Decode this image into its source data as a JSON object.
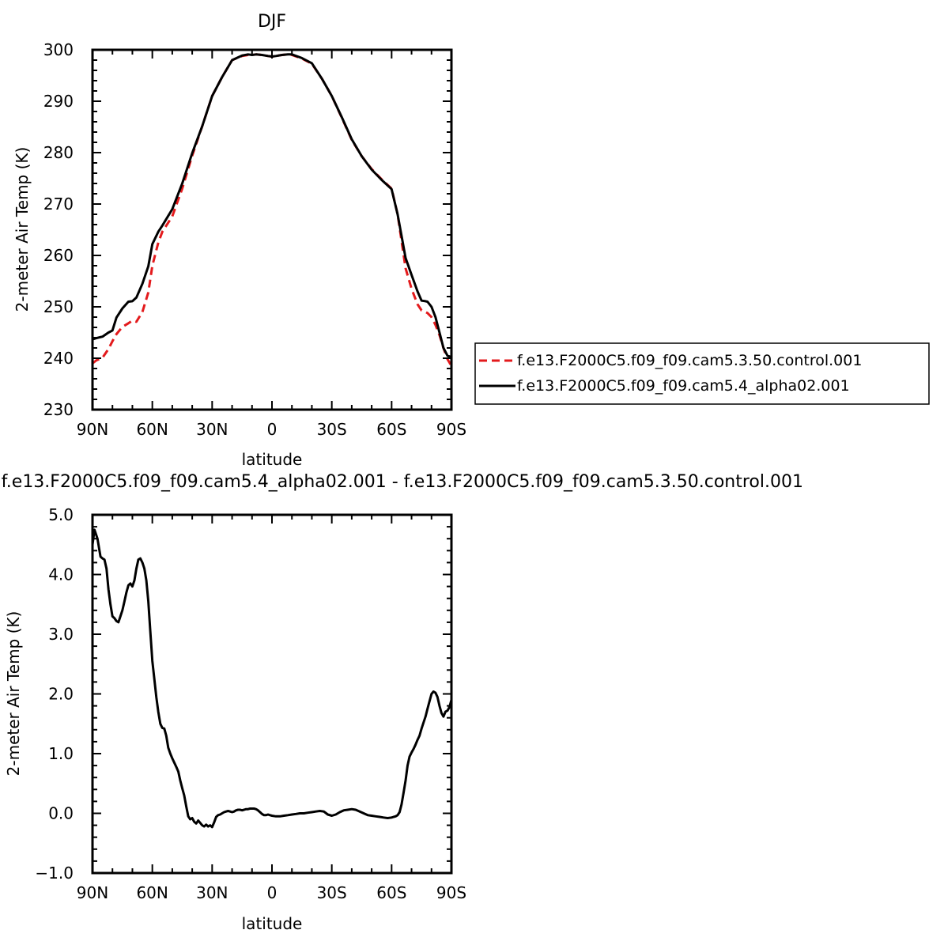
{
  "chart_data": [
    {
      "type": "line",
      "title": "DJF",
      "xlabel": "latitude",
      "ylabel": "2-meter Air Temp (K)",
      "xlim": [
        -90,
        90
      ],
      "ylim": [
        230,
        300
      ],
      "x_ticks": [
        -90,
        -60,
        -30,
        0,
        30,
        60,
        90
      ],
      "x_tick_labels": [
        "90N",
        "60N",
        "30N",
        "0",
        "30S",
        "60S",
        "90S"
      ],
      "y_ticks": [
        230,
        240,
        250,
        260,
        270,
        280,
        290,
        300
      ],
      "y_tick_labels": [
        "230",
        "240",
        "250",
        "260",
        "270",
        "280",
        "290",
        "300"
      ],
      "legend_position": "right-outside",
      "series": [
        {
          "name": "f.e13.F2000C5.f09_f09.cam5.3.50.control.001",
          "color": "#e31a1c",
          "dash": "dashed",
          "x": [
            -90,
            -88,
            -85,
            -82,
            -80,
            -78,
            -75,
            -72,
            -70,
            -68,
            -65,
            -62,
            -60,
            -57,
            -55,
            -50,
            -45,
            -40,
            -35,
            -30,
            -25,
            -20,
            -15,
            -12,
            -10,
            -8,
            -5,
            -2,
            0,
            2,
            5,
            8,
            10,
            15,
            20,
            25,
            30,
            35,
            40,
            45,
            50,
            55,
            60,
            63,
            65,
            67,
            70,
            73,
            75,
            77,
            78,
            80,
            82,
            84,
            86,
            88,
            90
          ],
          "y": [
            239.0,
            239.6,
            240.1,
            241.8,
            243.3,
            244.7,
            246.1,
            246.8,
            247.3,
            247.1,
            249.0,
            252.8,
            258.0,
            262.5,
            264.6,
            267.6,
            273.0,
            279.4,
            285.1,
            291.0,
            294.7,
            298.0,
            298.8,
            299.0,
            299.0,
            299.1,
            299.0,
            298.8,
            298.7,
            298.8,
            299.0,
            299.1,
            299.0,
            298.3,
            297.3,
            294.4,
            291.0,
            286.8,
            282.5,
            279.3,
            276.8,
            274.8,
            273.0,
            268.0,
            262.8,
            257.5,
            253.5,
            250.5,
            249.3,
            249.0,
            248.8,
            248.0,
            246.5,
            244.5,
            242.0,
            239.8,
            238.5
          ]
        },
        {
          "name": "f.e13.F2000C5.f09_f09.cam5.4_alpha02.001",
          "color": "#000000",
          "dash": "solid",
          "x": [
            -90,
            -88,
            -85,
            -82,
            -80,
            -78,
            -75,
            -72,
            -70,
            -68,
            -65,
            -62,
            -60,
            -57,
            -55,
            -50,
            -45,
            -40,
            -35,
            -30,
            -25,
            -20,
            -15,
            -12,
            -10,
            -8,
            -5,
            -2,
            0,
            2,
            5,
            8,
            10,
            15,
            20,
            25,
            30,
            35,
            40,
            45,
            50,
            55,
            60,
            63,
            65,
            67,
            70,
            73,
            75,
            77,
            78,
            80,
            82,
            84,
            86,
            88,
            90
          ],
          "y": [
            243.7,
            243.9,
            244.2,
            245.0,
            245.4,
            247.9,
            249.7,
            251.0,
            251.1,
            251.8,
            254.5,
            257.9,
            262.2,
            264.6,
            265.8,
            269.0,
            274.0,
            279.9,
            285.1,
            291.0,
            294.7,
            298.0,
            298.9,
            299.1,
            299.0,
            299.1,
            299.0,
            298.8,
            298.7,
            298.8,
            299.0,
            299.1,
            299.1,
            298.4,
            297.4,
            294.4,
            291.0,
            286.9,
            282.6,
            279.3,
            276.7,
            274.7,
            272.9,
            268.0,
            263.8,
            259.5,
            256.2,
            253.0,
            251.2,
            251.1,
            251.0,
            250.0,
            248.0,
            245.0,
            242.0,
            240.5,
            240.2
          ]
        }
      ]
    },
    {
      "type": "line",
      "title": "f.e13.F2000C5.f09_f09.cam5.4_alpha02.001 - f.e13.F2000C5.f09_f09.cam5.3.50.control.001",
      "xlabel": "latitude",
      "ylabel": "2-meter Air Temp (K)",
      "xlim": [
        -90,
        90
      ],
      "ylim": [
        -1.0,
        5.0
      ],
      "x_ticks": [
        -90,
        -60,
        -30,
        0,
        30,
        60,
        90
      ],
      "x_tick_labels": [
        "90N",
        "60N",
        "30N",
        "0",
        "30S",
        "60S",
        "90S"
      ],
      "y_ticks": [
        -1.0,
        0.0,
        1.0,
        2.0,
        3.0,
        4.0,
        5.0
      ],
      "y_tick_labels": [
        "−1.0",
        "0.0",
        "1.0",
        "2.0",
        "3.0",
        "4.0",
        "5.0"
      ],
      "series": [
        {
          "name": "",
          "color": "#000000",
          "dash": "solid",
          "x": [
            -90,
            -89,
            -87.5,
            -86,
            -85,
            -84,
            -83,
            -82,
            -81,
            -80,
            -79,
            -78,
            -77,
            -76,
            -75,
            -74,
            -73,
            -72,
            -71,
            -70,
            -69,
            -68,
            -67,
            -66,
            -65,
            -64,
            -63,
            -62,
            -61,
            -60,
            -59,
            -58,
            -57,
            -56,
            -55,
            -54,
            -53,
            -52,
            -51,
            -50,
            -49,
            -48,
            -47,
            -46,
            -45,
            -44,
            -43,
            -42,
            -41,
            -40,
            -39,
            -38,
            -37,
            -36,
            -35,
            -34,
            -33,
            -32,
            -31,
            -30,
            -29,
            -28,
            -27,
            -26,
            -25,
            -24,
            -23,
            -22,
            -21,
            -20,
            -19,
            -18,
            -17,
            -16,
            -15,
            -14,
            -13,
            -12,
            -11,
            -10,
            -9,
            -8,
            -7,
            -6,
            -5,
            -4,
            -3,
            -2,
            -1,
            0,
            2,
            4,
            6,
            8,
            10,
            12,
            14,
            16,
            18,
            20,
            22,
            24,
            26,
            28,
            30,
            32,
            34,
            36,
            38,
            40,
            42,
            44,
            46,
            48,
            50,
            52,
            54,
            56,
            58,
            60,
            61,
            62,
            63,
            64,
            65,
            66,
            67,
            68,
            69,
            70,
            71,
            72,
            73,
            74,
            75,
            76,
            77,
            78,
            79,
            80,
            81,
            82,
            83,
            84,
            85,
            86,
            87,
            88,
            89,
            90
          ],
          "y": [
            4.5,
            4.75,
            4.6,
            4.3,
            4.27,
            4.25,
            4.1,
            3.75,
            3.5,
            3.3,
            3.27,
            3.22,
            3.2,
            3.3,
            3.4,
            3.55,
            3.7,
            3.82,
            3.85,
            3.8,
            3.9,
            4.1,
            4.25,
            4.27,
            4.2,
            4.1,
            3.9,
            3.55,
            3.05,
            2.55,
            2.25,
            1.95,
            1.7,
            1.5,
            1.43,
            1.42,
            1.3,
            1.1,
            1.0,
            0.92,
            0.85,
            0.78,
            0.7,
            0.55,
            0.42,
            0.3,
            0.12,
            -0.05,
            -0.1,
            -0.08,
            -0.14,
            -0.17,
            -0.12,
            -0.16,
            -0.2,
            -0.22,
            -0.19,
            -0.22,
            -0.2,
            -0.23,
            -0.15,
            -0.06,
            -0.03,
            -0.02,
            0.0,
            0.02,
            0.03,
            0.04,
            0.03,
            0.02,
            0.03,
            0.05,
            0.06,
            0.06,
            0.05,
            0.06,
            0.07,
            0.07,
            0.08,
            0.08,
            0.08,
            0.07,
            0.05,
            0.02,
            -0.01,
            -0.03,
            -0.03,
            -0.02,
            -0.03,
            -0.04,
            -0.05,
            -0.05,
            -0.04,
            -0.03,
            -0.02,
            -0.01,
            0.0,
            0.0,
            0.01,
            0.02,
            0.03,
            0.04,
            0.03,
            -0.02,
            -0.04,
            -0.02,
            0.02,
            0.05,
            0.06,
            0.07,
            0.06,
            0.03,
            0.0,
            -0.03,
            -0.04,
            -0.05,
            -0.06,
            -0.07,
            -0.08,
            -0.07,
            -0.06,
            -0.05,
            -0.03,
            0.02,
            0.15,
            0.35,
            0.55,
            0.8,
            0.95,
            1.02,
            1.08,
            1.15,
            1.23,
            1.3,
            1.42,
            1.52,
            1.62,
            1.75,
            1.88,
            2.0,
            2.04,
            2.02,
            1.95,
            1.8,
            1.68,
            1.62,
            1.7,
            1.72,
            1.78,
            1.9
          ]
        }
      ]
    }
  ]
}
